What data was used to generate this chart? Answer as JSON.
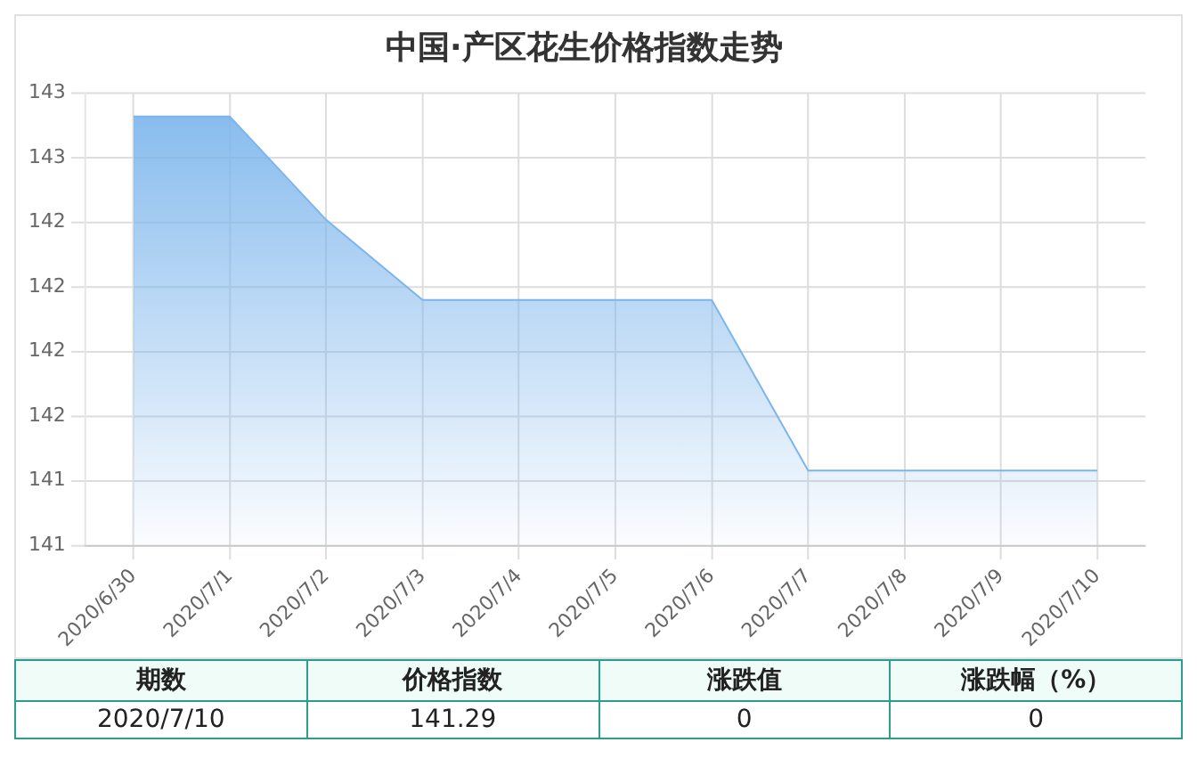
{
  "chart_data": {
    "type": "area",
    "title": "中国·产区花生价格指数走势",
    "categories": [
      "2020/6/30",
      "2020/7/1",
      "2020/7/2",
      "2020/7/3",
      "2020/7/4",
      "2020/7/5",
      "2020/7/6",
      "2020/7/7",
      "2020/7/8",
      "2020/7/9",
      "2020/7/10"
    ],
    "series": [
      {
        "color": "#7cb5ec",
        "values": [
          142.66,
          142.66,
          142.26,
          141.95,
          141.95,
          141.95,
          141.95,
          141.29,
          141.29,
          141.29,
          141.29
        ]
      }
    ],
    "ylim": [
      141,
      142.75
    ],
    "yticks": [
      {
        "value": 141,
        "label": "141"
      },
      {
        "value": 141.25,
        "label": "141"
      },
      {
        "value": 141.5,
        "label": "142"
      },
      {
        "value": 141.75,
        "label": "142"
      },
      {
        "value": 142,
        "label": "142"
      },
      {
        "value": 142.25,
        "label": "142"
      },
      {
        "value": 142.5,
        "label": "143"
      },
      {
        "value": 142.75,
        "label": "143"
      }
    ],
    "grid": true,
    "marker": "none",
    "annotations": [
      "期数",
      "价格指数",
      "涨跌值",
      "涨跌幅（%）",
      "2020/7/10",
      "141.29",
      "0",
      "0"
    ]
  }
}
